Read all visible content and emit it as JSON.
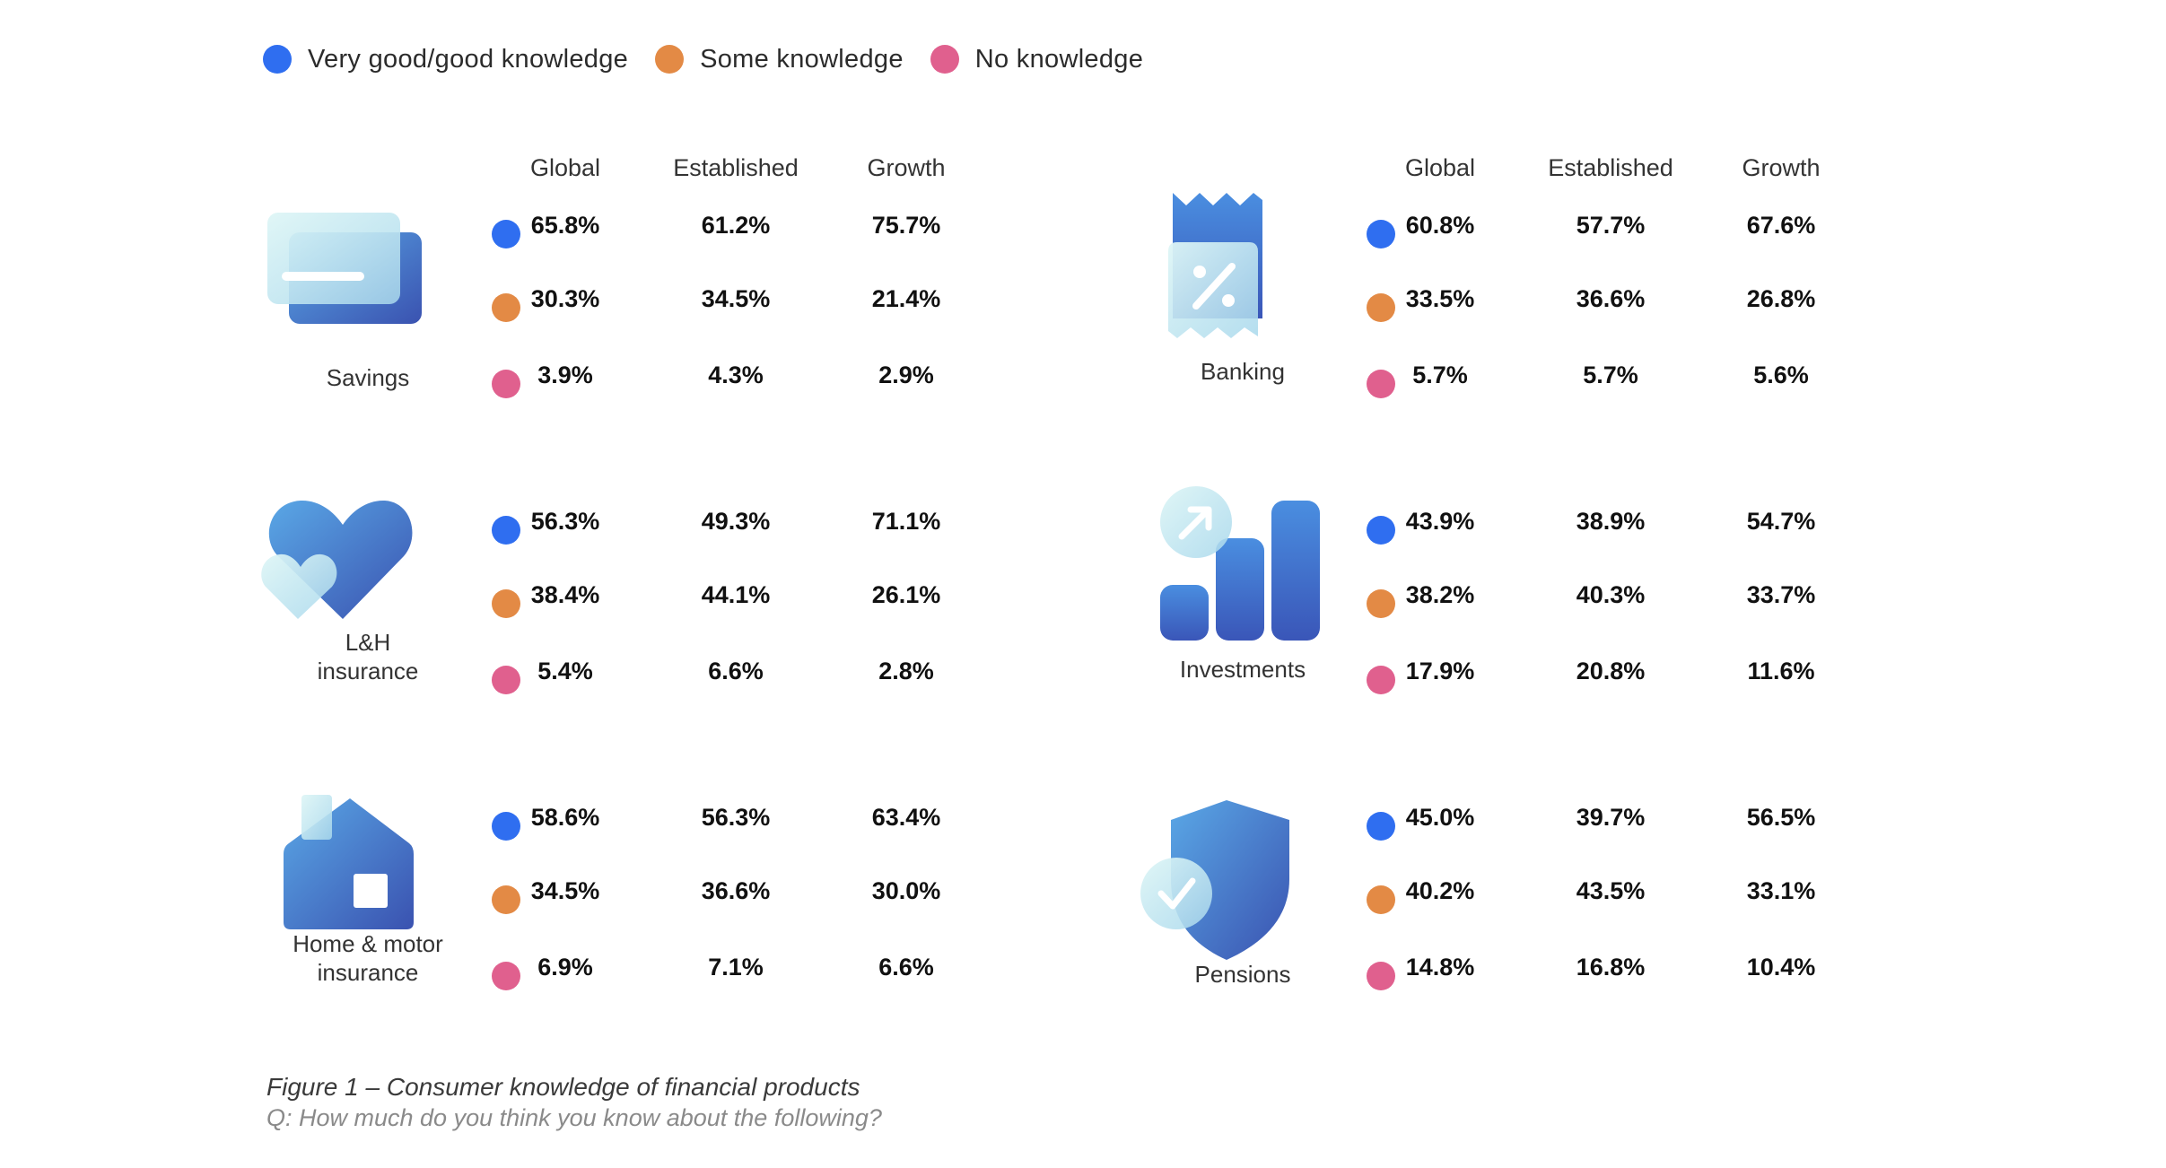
{
  "legend": [
    {
      "label": "Very good/good knowledge",
      "color": "#2f6ef0"
    },
    {
      "label": "Some knowledge",
      "color": "#e38a45"
    },
    {
      "label": "No knowledge",
      "color": "#e0608e"
    }
  ],
  "columns": [
    "Global",
    "Established",
    "Growth"
  ],
  "caption": {
    "title": "Figure 1 – Consumer knowledge of financial products",
    "question": "Q: How much do you think you know about the following?"
  },
  "chart_data": {
    "type": "table",
    "columns": [
      "Global",
      "Established",
      "Growth"
    ],
    "row_levels": [
      "Very good/good knowledge",
      "Some knowledge",
      "No knowledge"
    ],
    "categories": [
      {
        "label": "Savings",
        "icon": "credit-card-icon",
        "values": [
          [
            "65.8%",
            "61.2%",
            "75.7%"
          ],
          [
            "30.3%",
            "34.5%",
            "21.4%"
          ],
          [
            "3.9%",
            "4.3%",
            "2.9%"
          ]
        ]
      },
      {
        "label": "Banking",
        "icon": "receipt-percent-icon",
        "values": [
          [
            "60.8%",
            "57.7%",
            "67.6%"
          ],
          [
            "33.5%",
            "36.6%",
            "26.8%"
          ],
          [
            "5.7%",
            "5.7%",
            "5.6%"
          ]
        ]
      },
      {
        "label": "L&H\ninsurance",
        "icon": "heart-icon",
        "values": [
          [
            "56.3%",
            "49.3%",
            "71.1%"
          ],
          [
            "38.4%",
            "44.1%",
            "26.1%"
          ],
          [
            "5.4%",
            "6.6%",
            "2.8%"
          ]
        ]
      },
      {
        "label": "Investments",
        "icon": "bar-chart-icon",
        "values": [
          [
            "43.9%",
            "38.9%",
            "54.7%"
          ],
          [
            "38.2%",
            "40.3%",
            "33.7%"
          ],
          [
            "17.9%",
            "20.8%",
            "11.6%"
          ]
        ]
      },
      {
        "label": "Home & motor\ninsurance",
        "icon": "house-icon",
        "values": [
          [
            "58.6%",
            "56.3%",
            "63.4%"
          ],
          [
            "34.5%",
            "36.6%",
            "30.0%"
          ],
          [
            "6.9%",
            "7.1%",
            "6.6%"
          ]
        ]
      },
      {
        "label": "Pensions",
        "icon": "shield-check-icon",
        "values": [
          [
            "45.0%",
            "39.7%",
            "56.5%"
          ],
          [
            "40.2%",
            "43.5%",
            "33.1%"
          ],
          [
            "14.8%",
            "16.8%",
            "10.4%"
          ]
        ]
      }
    ]
  }
}
